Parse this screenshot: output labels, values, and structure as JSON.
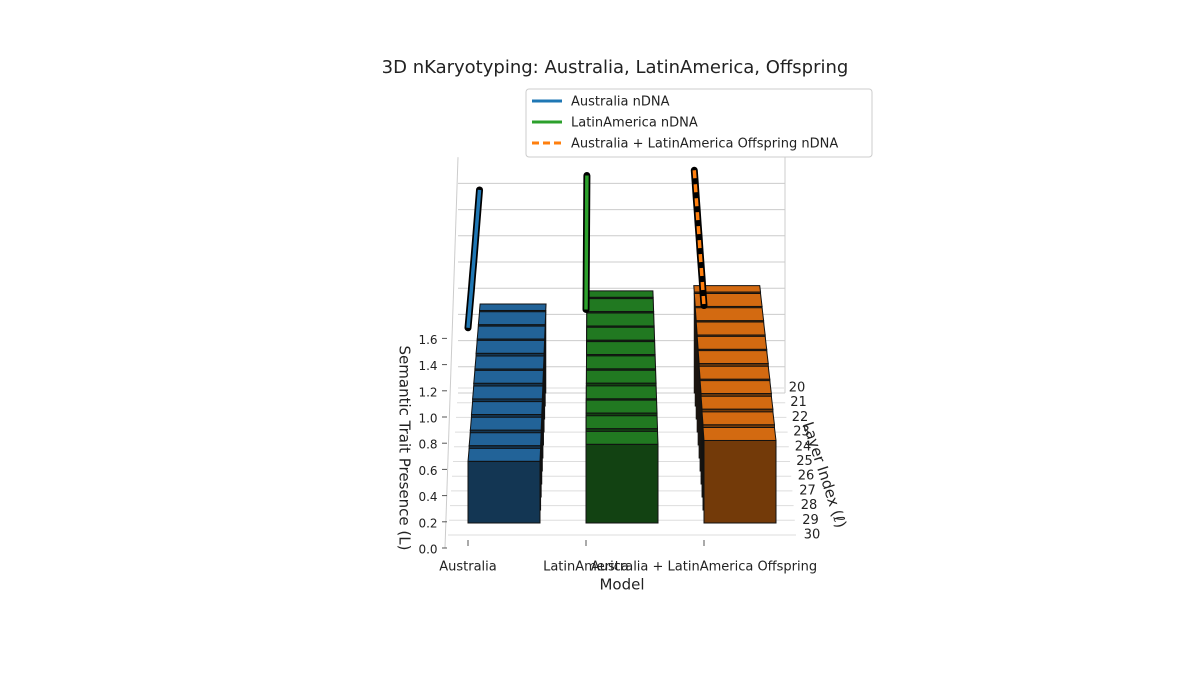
{
  "chart_data": {
    "type": "bar3d",
    "title": "3D nKaryotyping: Australia, LatinAmerica, Offspring",
    "xlabel": "Model",
    "ylabel": "Layer Index (ℓ)",
    "zlabel": "Semantic Trait Presence (L)",
    "categories": [
      "Australia",
      "LatinAmerica",
      "Australia + LatinAmerica Offspring"
    ],
    "layers": [
      20,
      21,
      22,
      23,
      24,
      25,
      26,
      27,
      28,
      29,
      30
    ],
    "zlim": [
      0,
      1.8
    ],
    "zticks": [
      {
        "value": 0,
        "label": "0.0"
      },
      0.2,
      0.4,
      0.6,
      0.8,
      {
        "value": 1,
        "label": "1.0"
      },
      1.2,
      1.4,
      1.6
    ],
    "legend": "upper right",
    "series": [
      {
        "name": "Australia nDNA",
        "color": "#1f77b4",
        "bar_color": "#1f5a8a",
        "dashed": false,
        "bar_values": [
          0.63,
          0.62,
          0.61,
          0.6,
          0.58,
          0.57,
          0.55,
          0.53,
          0.51,
          0.49,
          0.47
        ],
        "line_values": [
          1.55,
          1.54,
          1.53,
          1.52,
          1.51,
          1.5,
          1.5,
          1.49,
          1.49,
          1.49,
          1.49
        ]
      },
      {
        "name": "LatinAmerica nDNA",
        "color": "#2ca02c",
        "bar_color": "#1e6e1e",
        "dashed": false,
        "bar_values": [
          0.73,
          0.72,
          0.71,
          0.7,
          0.69,
          0.68,
          0.67,
          0.65,
          0.64,
          0.62,
          0.6
        ],
        "line_values": [
          1.66,
          1.66,
          1.65,
          1.65,
          1.65,
          1.64,
          1.64,
          1.64,
          1.63,
          1.63,
          1.63
        ]
      },
      {
        "name": "Australia + LatinAmerica Offspring nDNA",
        "color": "#ff7f0e",
        "bar_color": "#c0600f",
        "dashed": true,
        "bar_values": [
          0.77,
          0.76,
          0.75,
          0.74,
          0.73,
          0.72,
          0.7,
          0.69,
          0.67,
          0.65,
          0.63
        ],
        "line_values": [
          1.7,
          1.7,
          1.69,
          1.69,
          1.68,
          1.68,
          1.67,
          1.67,
          1.67,
          1.66,
          1.66
        ]
      }
    ]
  }
}
